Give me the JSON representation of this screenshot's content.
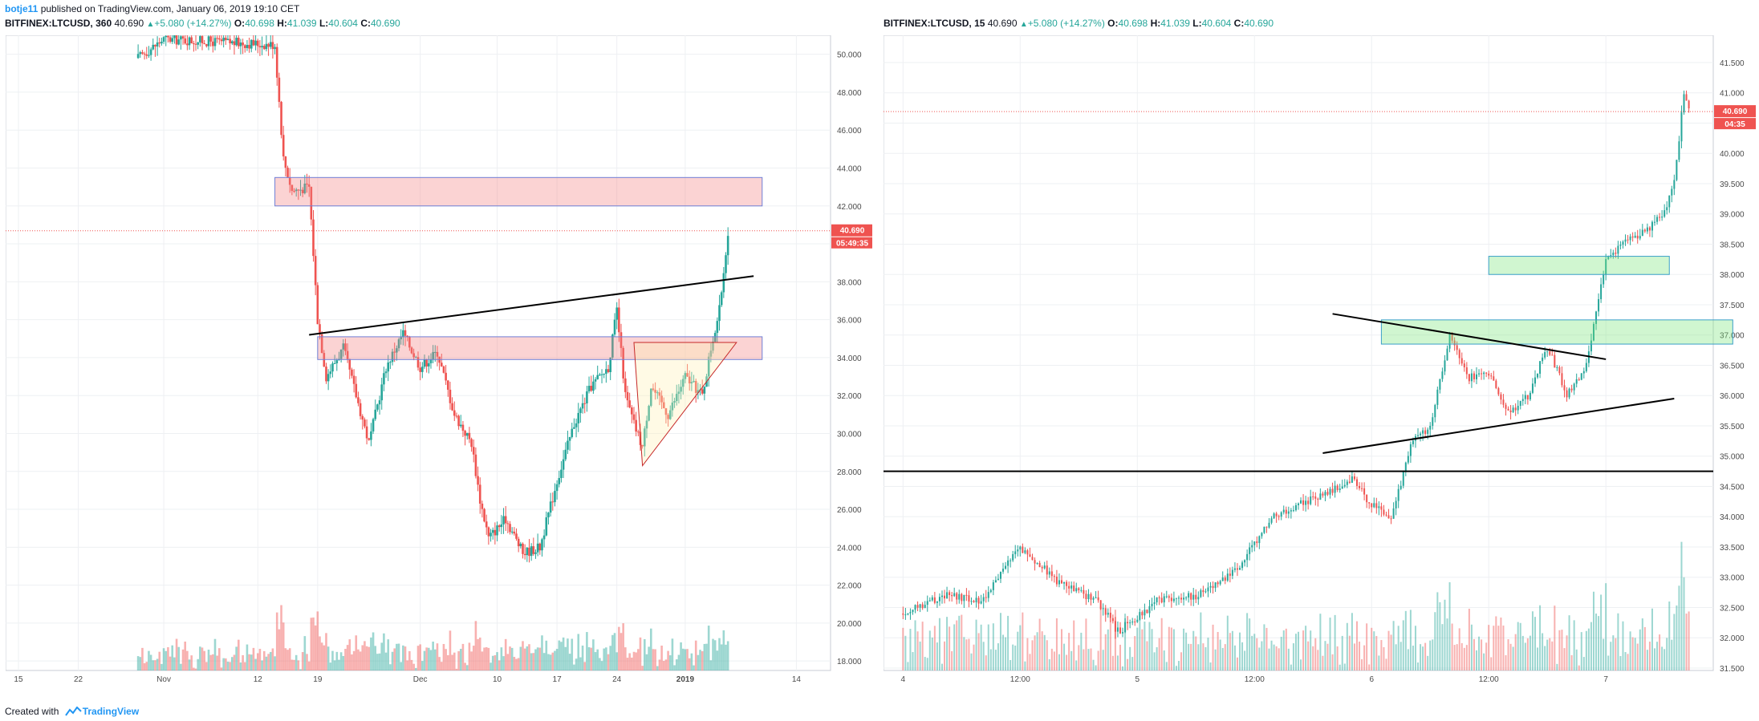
{
  "publish": {
    "author": "botje11",
    "text": " published on TradingView.com, January 06, 2019 19:10 CET"
  },
  "footer": {
    "prefix": "Created with",
    "brand": "TradingView"
  },
  "colors": {
    "up": "#26a69a",
    "down": "#ef5350",
    "price_label": "#ef5350",
    "accent": "#2196f3"
  },
  "panels": [
    {
      "header": {
        "symbol": "BITFINEX:LTCUSD, 360",
        "last": "40.690",
        "change": "+5.080 (+14.27%)",
        "o_label": "O:",
        "o": "40.698",
        "h_label": "H:",
        "h": "41.039",
        "l_label": "L:",
        "l": "40.604",
        "c_label": "C:",
        "c": "40.690"
      },
      "price_label": "40.690",
      "countdown": "05:49:35"
    },
    {
      "header": {
        "symbol": "BITFINEX:LTCUSD, 15",
        "last": "40.690",
        "change": "+5.080 (+14.27%)",
        "o_label": "O:",
        "o": "40.698",
        "h_label": "H:",
        "h": "41.039",
        "l_label": "L:",
        "l": "40.604",
        "c_label": "C:",
        "c": "40.690"
      },
      "price_label": "40.690",
      "countdown": "04:35"
    }
  ],
  "chart_data": [
    {
      "type": "candlestick",
      "symbol": "BITFINEX:LTCUSD",
      "interval": "360",
      "ylim": [
        17.5,
        51.0
      ],
      "y_ticks": [
        "50.000",
        "48.000",
        "46.000",
        "44.000",
        "42.000",
        "40.000",
        "38.000",
        "36.000",
        "34.000",
        "32.000",
        "30.000",
        "28.000",
        "26.000",
        "24.000",
        "22.000",
        "20.000",
        "18.000"
      ],
      "x_ticks": [
        "15",
        "22",
        "Nov",
        "12",
        "19",
        "Dec",
        "10",
        "17",
        "24",
        "2019",
        "14"
      ],
      "last_price": 40.69,
      "close_path": [
        {
          "x": "Oct 29",
          "y": 49.8
        },
        {
          "x": "Nov 1",
          "y": 50.8
        },
        {
          "x": "Nov 14",
          "y": 50.5
        },
        {
          "x": "Nov 15",
          "y": 44.5
        },
        {
          "x": "Nov 16",
          "y": 42.8
        },
        {
          "x": "Nov 18",
          "y": 43.0
        },
        {
          "x": "Nov 19",
          "y": 36.0
        },
        {
          "x": "Nov 20",
          "y": 33.0
        },
        {
          "x": "Nov 22",
          "y": 34.5
        },
        {
          "x": "Nov 25",
          "y": 29.5
        },
        {
          "x": "Nov 27",
          "y": 33.5
        },
        {
          "x": "Nov 29",
          "y": 35.3
        },
        {
          "x": "Dec 1",
          "y": 33.5
        },
        {
          "x": "Dec 3",
          "y": 34.3
        },
        {
          "x": "Dec 5",
          "y": 31.0
        },
        {
          "x": "Dec 7",
          "y": 29.5
        },
        {
          "x": "Dec 8",
          "y": 26.5
        },
        {
          "x": "Dec 9",
          "y": 24.5
        },
        {
          "x": "Dec 11",
          "y": 25.5
        },
        {
          "x": "Dec 13",
          "y": 23.7
        },
        {
          "x": "Dec 15",
          "y": 24.0
        },
        {
          "x": "Dec 17",
          "y": 27.5
        },
        {
          "x": "Dec 19",
          "y": 30.5
        },
        {
          "x": "Dec 21",
          "y": 32.5
        },
        {
          "x": "Dec 23",
          "y": 33.5
        },
        {
          "x": "Dec 24",
          "y": 36.5
        },
        {
          "x": "Dec 25",
          "y": 32.0
        },
        {
          "x": "Dec 26",
          "y": 30.5
        },
        {
          "x": "Dec 27",
          "y": 29.3
        },
        {
          "x": "Dec 28",
          "y": 32.5
        },
        {
          "x": "Dec 30",
          "y": 31.0
        },
        {
          "x": "Jan 1",
          "y": 33.0
        },
        {
          "x": "Jan 3",
          "y": 32.0
        },
        {
          "x": "Jan 4",
          "y": 34.5
        },
        {
          "x": "Jan 5",
          "y": 36.5
        },
        {
          "x": "Jan 6",
          "y": 40.69
        }
      ],
      "annotations": [
        {
          "type": "zone",
          "color": "red",
          "x": [
            "Nov 14",
            "Jan 10"
          ],
          "y": [
            42.0,
            43.5
          ]
        },
        {
          "type": "zone",
          "color": "red",
          "x": [
            "Nov 19",
            "Jan 10"
          ],
          "y": [
            33.9,
            35.1
          ]
        },
        {
          "type": "trendline",
          "x": [
            "Nov 18",
            "Jan 9"
          ],
          "y": [
            35.2,
            38.3
          ]
        },
        {
          "type": "triangle",
          "points": [
            {
              "x": "Dec 26",
              "y": 34.8
            },
            {
              "x": "Jan 7",
              "y": 34.8
            },
            {
              "x": "Dec 27",
              "y": 28.3
            }
          ]
        }
      ]
    },
    {
      "type": "candlestick",
      "symbol": "BITFINEX:LTCUSD",
      "interval": "15",
      "ylim": [
        31.46,
        41.95
      ],
      "y_ticks": [
        "41.500",
        "41.000",
        "40.500",
        "40.000",
        "39.500",
        "39.000",
        "38.500",
        "38.000",
        "37.500",
        "37.000",
        "36.500",
        "36.000",
        "35.500",
        "35.000",
        "34.500",
        "34.000",
        "33.500",
        "33.000",
        "32.500",
        "32.000",
        "31.500"
      ],
      "x_ticks": [
        "4",
        "12:00",
        "5",
        "12:00",
        "6",
        "12:00",
        "7"
      ],
      "last_price": 40.69,
      "close_path": [
        {
          "x": "Jan 4 00:00",
          "y": 32.4
        },
        {
          "x": "Jan 4 04:00",
          "y": 32.7
        },
        {
          "x": "Jan 4 08:00",
          "y": 32.6
        },
        {
          "x": "Jan 4 12:00",
          "y": 33.5
        },
        {
          "x": "Jan 4 16:00",
          "y": 32.9
        },
        {
          "x": "Jan 4 20:00",
          "y": 32.6
        },
        {
          "x": "Jan 4 22:00",
          "y": 32.1
        },
        {
          "x": "Jan 5 02:00",
          "y": 32.6
        },
        {
          "x": "Jan 5 06:00",
          "y": 32.7
        },
        {
          "x": "Jan 5 10:00",
          "y": 33.1
        },
        {
          "x": "Jan 5 14:00",
          "y": 34.0
        },
        {
          "x": "Jan 5 18:00",
          "y": 34.3
        },
        {
          "x": "Jan 5 22:00",
          "y": 34.6
        },
        {
          "x": "Jan 6 00:00",
          "y": 34.2
        },
        {
          "x": "Jan 6 02:00",
          "y": 33.95
        },
        {
          "x": "Jan 6 04:00",
          "y": 35.2
        },
        {
          "x": "Jan 6 06:00",
          "y": 35.5
        },
        {
          "x": "Jan 6 08:00",
          "y": 37.0
        },
        {
          "x": "Jan 6 10:00",
          "y": 36.3
        },
        {
          "x": "Jan 6 12:00",
          "y": 36.4
        },
        {
          "x": "Jan 6 14:00",
          "y": 35.7
        },
        {
          "x": "Jan 6 16:00",
          "y": 36.0
        },
        {
          "x": "Jan 6 18:00",
          "y": 36.8
        },
        {
          "x": "Jan 6 20:00",
          "y": 36.0
        },
        {
          "x": "Jan 6 22:00",
          "y": 36.5
        },
        {
          "x": "Jan 7 00:00",
          "y": 38.2
        },
        {
          "x": "Jan 7 02:00",
          "y": 38.6
        },
        {
          "x": "Jan 7 04:00",
          "y": 38.7
        },
        {
          "x": "Jan 7 06:00",
          "y": 39.0
        },
        {
          "x": "Jan 7 07:00",
          "y": 39.5
        },
        {
          "x": "Jan 7 08:00",
          "y": 41.0
        },
        {
          "x": "Jan 7 08:30",
          "y": 40.69
        }
      ],
      "annotations": [
        {
          "type": "zone",
          "color": "green",
          "x": [
            "Jan 6 12:00",
            "Jan 7 06:30"
          ],
          "y": [
            38.0,
            38.3
          ]
        },
        {
          "type": "zone",
          "color": "green",
          "x": [
            "Jan 6 01:00",
            "Jan 7 13:00"
          ],
          "y": [
            36.85,
            37.25
          ]
        },
        {
          "type": "trendline",
          "x": [
            "Jan 5 20:00",
            "Jan 7 00:00"
          ],
          "y": [
            37.35,
            36.6
          ]
        },
        {
          "type": "trendline",
          "x": [
            "Jan 5 19:00",
            "Jan 7 07:00"
          ],
          "y": [
            35.05,
            35.95
          ]
        },
        {
          "type": "horizontal",
          "y": 34.75
        }
      ]
    }
  ]
}
